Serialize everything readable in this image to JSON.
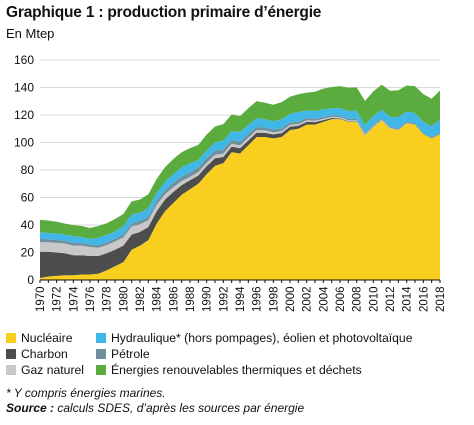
{
  "title": "Graphique 1 : production primaire d’énergie",
  "unit": "En Mtep",
  "footnote": "* Y compris énergies marines.",
  "source_label": "Source :",
  "source_text": " calculs SDES, d’après les sources par énergie",
  "chart_data": {
    "type": "area",
    "stacked": true,
    "title": "Graphique 1 : production primaire d’énergie",
    "ylabel": "En Mtep",
    "ylim": [
      0,
      160
    ],
    "yticks": [
      0,
      20,
      40,
      60,
      80,
      100,
      120,
      140,
      160
    ],
    "grid": true,
    "legend_position": "bottom",
    "x": [
      1970,
      1971,
      1972,
      1973,
      1974,
      1975,
      1976,
      1977,
      1978,
      1979,
      1980,
      1981,
      1982,
      1983,
      1984,
      1985,
      1986,
      1987,
      1988,
      1989,
      1990,
      1991,
      1992,
      1993,
      1994,
      1995,
      1996,
      1997,
      1998,
      1999,
      2000,
      2001,
      2002,
      2003,
      2004,
      2005,
      2006,
      2007,
      2008,
      2009,
      2010,
      2011,
      2012,
      2013,
      2014,
      2015,
      2016,
      2017,
      2018
    ],
    "xtick_labels": [
      "1970",
      "1972",
      "1974",
      "1976",
      "1978",
      "1980",
      "1982",
      "1984",
      "1986",
      "1988",
      "1990",
      "1992",
      "1994",
      "1996",
      "1998",
      "2000",
      "2002",
      "2004",
      "2006",
      "2008",
      "2010",
      "2012",
      "2014",
      "2016",
      "2018"
    ],
    "series": [
      {
        "name": "Nucléaire",
        "color": "#f9cf1f",
        "values": [
          1.5,
          2.5,
          3,
          3.5,
          3.5,
          4,
          4,
          4.5,
          7,
          10,
          13,
          22,
          25,
          29,
          41,
          50,
          56,
          62,
          66,
          70,
          77,
          83,
          85,
          93,
          92,
          98,
          104,
          104,
          103,
          104,
          109,
          110,
          113,
          113,
          115,
          117,
          117,
          115,
          115,
          105,
          111,
          116,
          110,
          109,
          114,
          113,
          106,
          103,
          106
        ]
      },
      {
        "name": "Charbon",
        "color": "#4d4d4d",
        "values": [
          19,
          18,
          17,
          16,
          14.5,
          14,
          13.5,
          13,
          12.5,
          12,
          12,
          11,
          10,
          9.5,
          9,
          8.5,
          8,
          7,
          6.5,
          6,
          5.8,
          5.5,
          4.5,
          4,
          3.8,
          3.5,
          3.2,
          3.0,
          2.9,
          2.8,
          2.5,
          2.2,
          2.0,
          1.8,
          1.3,
          0.8,
          0.5,
          0.4,
          0.3,
          0.2,
          0.2,
          0.2,
          0.2,
          0.1,
          0.1,
          0.1,
          0.1,
          0,
          0
        ]
      },
      {
        "name": "Gaz naturel",
        "color": "#c8c8c8",
        "values": [
          7,
          7,
          7,
          7,
          7,
          7,
          6.5,
          6,
          6,
          6,
          6,
          6,
          5.5,
          5,
          4.5,
          4,
          3.5,
          3,
          2.5,
          2.5,
          2.5,
          2.5,
          2.4,
          2.2,
          2.1,
          2.0,
          1.9,
          1.8,
          1.6,
          1.5,
          1.4,
          1.3,
          1.2,
          1.1,
          1.0,
          0.9,
          0.9,
          0.8,
          0.8,
          0.7,
          0.6,
          0.5,
          0.5,
          0.3,
          0.1,
          0.1,
          0,
          0,
          0
        ]
      },
      {
        "name": "Pétrole",
        "color": "#6f8f9c",
        "values": [
          2.3,
          2.2,
          2.1,
          2,
          1.9,
          1.8,
          1.8,
          1.8,
          1.8,
          1.9,
          2,
          2.2,
          2.5,
          2.6,
          2.8,
          3,
          3.2,
          3.4,
          3.3,
          3.3,
          3.2,
          3.0,
          2.9,
          2.7,
          2.6,
          2.5,
          2.3,
          2.1,
          2.0,
          1.9,
          1.7,
          1.6,
          1.5,
          1.4,
          1.3,
          1.2,
          1.1,
          1.0,
          1.0,
          0.9,
          0.9,
          0.9,
          0.8,
          0.8,
          0.8,
          0.8,
          0.8,
          0.8,
          0.8
        ]
      },
      {
        "name": "Hydraulique* (hors pompages), éolien et photovoltaïque",
        "color": "#41b7e7",
        "values": [
          5,
          4.5,
          4.8,
          4.5,
          5,
          4.5,
          4,
          5.5,
          5.5,
          5.5,
          6,
          6.5,
          6,
          6.3,
          6.2,
          6,
          6.3,
          6.5,
          6.6,
          5.5,
          5.8,
          6.1,
          6.6,
          6.5,
          7.2,
          6.9,
          6.2,
          6.0,
          6.0,
          6.7,
          6.2,
          7.0,
          5.6,
          5.6,
          5.6,
          5.0,
          5.5,
          5.7,
          6.0,
          6.0,
          6.5,
          6.0,
          7.1,
          8.3,
          7.5,
          7.5,
          8.3,
          8.0,
          10.0
        ]
      },
      {
        "name": "Énergies renouvelables thermiques et déchets",
        "color": "#5aac3e",
        "values": [
          9,
          9,
          8.5,
          8,
          8,
          8,
          8,
          8.5,
          8.5,
          9,
          9,
          9.5,
          9.5,
          10,
          10,
          10.5,
          11,
          11,
          11,
          11,
          11.5,
          11.5,
          12,
          12,
          11.5,
          12,
          12.5,
          12,
          12,
          12.5,
          12.5,
          13,
          13,
          14,
          15,
          15.5,
          16,
          17,
          17,
          17.5,
          18,
          18.5,
          19,
          19.5,
          19,
          19.5,
          20,
          20,
          21
        ]
      }
    ]
  }
}
